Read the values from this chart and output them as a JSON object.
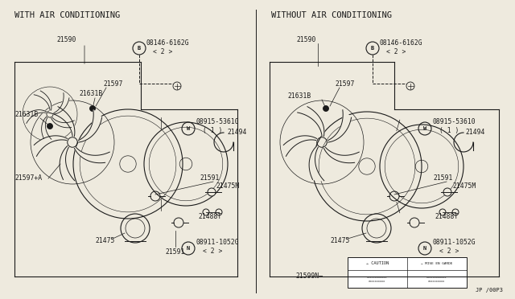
{
  "bg_color": "#eeeade",
  "line_color": "#1a1a1a",
  "title_left": "WITH AIR CONDITIONING",
  "title_right": "WITHOUT AIR CONDITIONING",
  "page_code": "JP /00P3",
  "fig_width": 6.4,
  "fig_height": 3.72,
  "dpi": 100
}
